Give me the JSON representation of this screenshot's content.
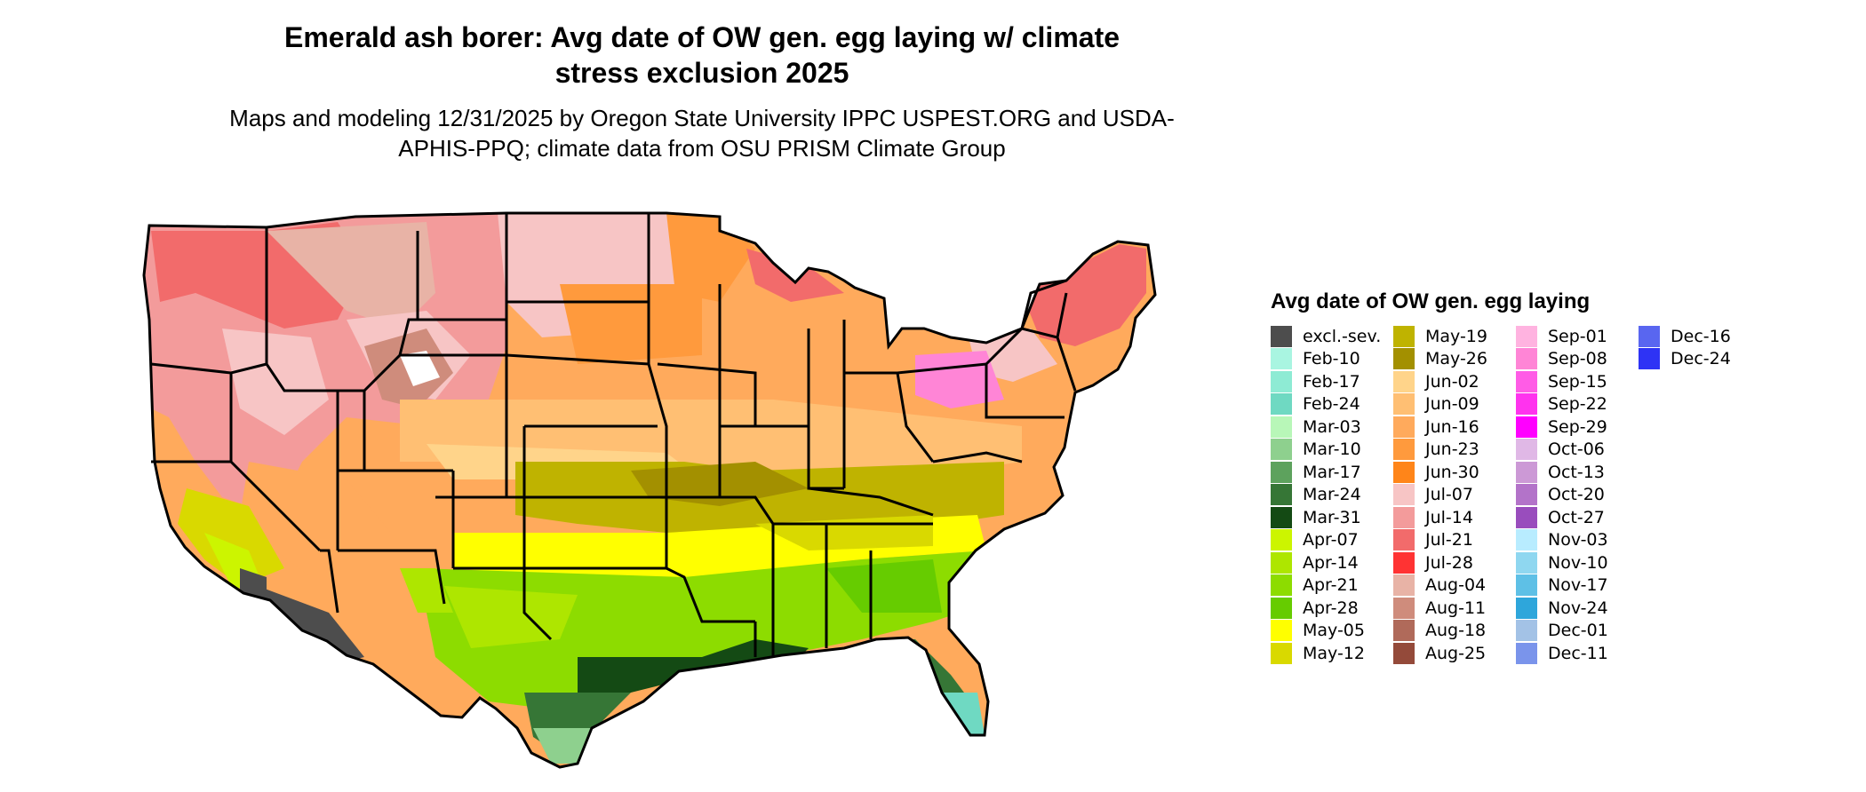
{
  "title": "Emerald ash borer: Avg date of OW gen. egg laying w/ climate stress exclusion 2025",
  "subtitle": "Maps and modeling 12/31/2025 by Oregon State University IPPC USPEST.ORG and USDA-APHIS-PPQ; climate data from OSU PRISM Climate Group",
  "legend": {
    "title": "Avg date of OW gen. egg laying",
    "columns": [
      [
        {
          "label": "excl.-sev.",
          "color": "#4d4d4d"
        },
        {
          "label": "Feb-10",
          "color": "#a9f5e1"
        },
        {
          "label": "Feb-17",
          "color": "#8eebd4"
        },
        {
          "label": "Feb-24",
          "color": "#6fd9c2"
        },
        {
          "label": "Mar-03",
          "color": "#b8f7b8"
        },
        {
          "label": "Mar-10",
          "color": "#8ed08e"
        },
        {
          "label": "Mar-17",
          "color": "#5da25d"
        },
        {
          "label": "Mar-24",
          "color": "#367636"
        },
        {
          "label": "Mar-31",
          "color": "#144a14"
        },
        {
          "label": "Apr-07",
          "color": "#ccf500"
        },
        {
          "label": "Apr-14",
          "color": "#aee600"
        },
        {
          "label": "Apr-21",
          "color": "#8ddc00"
        },
        {
          "label": "Apr-28",
          "color": "#66cc00"
        },
        {
          "label": "May-05",
          "color": "#ffff00"
        },
        {
          "label": "May-12",
          "color": "#d9d900"
        }
      ],
      [
        {
          "label": "May-19",
          "color": "#bfb300"
        },
        {
          "label": "May-26",
          "color": "#a39000"
        },
        {
          "label": "Jun-02",
          "color": "#ffd48a"
        },
        {
          "label": "Jun-09",
          "color": "#ffbf73"
        },
        {
          "label": "Jun-16",
          "color": "#ffaa5c"
        },
        {
          "label": "Jun-23",
          "color": "#ff9a3d"
        },
        {
          "label": "Jun-30",
          "color": "#ff8519"
        },
        {
          "label": "Jul-07",
          "color": "#f7c5c5"
        },
        {
          "label": "Jul-14",
          "color": "#f39b9b"
        },
        {
          "label": "Jul-21",
          "color": "#f26b6b"
        },
        {
          "label": "Jul-28",
          "color": "#ff3333"
        },
        {
          "label": "Aug-04",
          "color": "#e8b3a6"
        },
        {
          "label": "Aug-11",
          "color": "#cf8c7c"
        },
        {
          "label": "Aug-18",
          "color": "#b06a5a"
        },
        {
          "label": "Aug-25",
          "color": "#944a3a"
        }
      ],
      [
        {
          "label": "Sep-01",
          "color": "#ffb3e0"
        },
        {
          "label": "Sep-08",
          "color": "#ff85d6"
        },
        {
          "label": "Sep-15",
          "color": "#ff5ce6"
        },
        {
          "label": "Sep-22",
          "color": "#ff33ee"
        },
        {
          "label": "Sep-29",
          "color": "#ff00ff"
        },
        {
          "label": "Oct-06",
          "color": "#e0b8e6"
        },
        {
          "label": "Oct-13",
          "color": "#cc99d6"
        },
        {
          "label": "Oct-20",
          "color": "#b373c9"
        },
        {
          "label": "Oct-27",
          "color": "#994dbd"
        },
        {
          "label": "Nov-03",
          "color": "#b8ecff"
        },
        {
          "label": "Nov-10",
          "color": "#8fd7f0"
        },
        {
          "label": "Nov-17",
          "color": "#5ec0e6"
        },
        {
          "label": "Nov-24",
          "color": "#2ea6db"
        },
        {
          "label": "Dec-01",
          "color": "#a3c2e6"
        },
        {
          "label": "Dec-11",
          "color": "#7a94eb"
        }
      ],
      [
        {
          "label": "Dec-16",
          "color": "#5966f0"
        },
        {
          "label": "Dec-24",
          "color": "#2e33f5"
        }
      ]
    ]
  }
}
